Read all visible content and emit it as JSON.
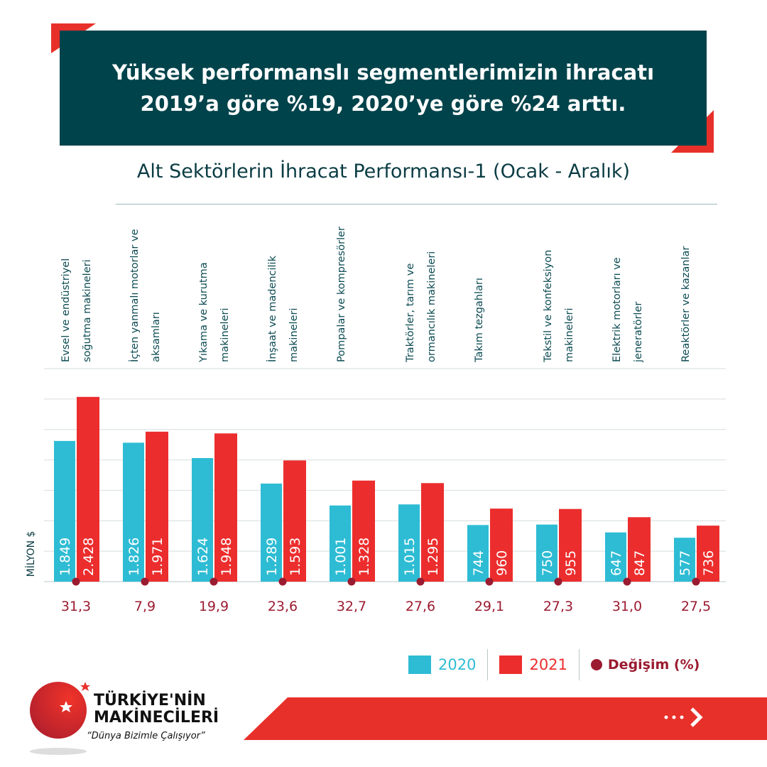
{
  "header": {
    "line1": "Yüksek performanslı segmentlerimizin ihracatı",
    "line2": "2019’a göre %19, 2020’ye göre %24 arttı."
  },
  "colors": {
    "header_bg": "#00434b",
    "series_2020": "#2ebcd4",
    "series_2021": "#ec2d2d",
    "change": "#9b1b30",
    "accent": "#e8302a"
  },
  "chart_data": {
    "type": "bar",
    "title": "Alt Sektörlerin İhracat Performansı-1 (Ocak - Aralık)",
    "ylabel": "MİLYON $",
    "ylim": [
      0,
      2800
    ],
    "grid": true,
    "legend_placement": "bottom-right",
    "categories": [
      "Evsel ve endüstriyel soğutma makineleri",
      "İçten yanmalı motorlar ve aksamları",
      "Yıkama ve kurutma makineleri",
      "İnşaat ve madencilik makineleri",
      "Pompalar ve kompresörler",
      "Traktörler, tarım ve ormancılık makineleri",
      "Takım tezgahları",
      "Tekstil ve konfeksiyon makineleri",
      "Elektrik motorları ve jeneratörler",
      "Reaktörler ve kazanlar"
    ],
    "series": [
      {
        "name": "2020",
        "values": [
          1849,
          1826,
          1624,
          1289,
          1001,
          1015,
          744,
          750,
          647,
          577
        ],
        "labels": [
          "1.849",
          "1.826",
          "1.624",
          "1.289",
          "1.001",
          "1.015",
          "744",
          "750",
          "647",
          "577"
        ]
      },
      {
        "name": "2021",
        "values": [
          2428,
          1971,
          1948,
          1593,
          1328,
          1295,
          960,
          955,
          847,
          736
        ],
        "labels": [
          "2.428",
          "1.971",
          "1.948",
          "1.593",
          "1.328",
          "1.295",
          "960",
          "955",
          "847",
          "736"
        ]
      },
      {
        "name": "Değişim (%)",
        "values": [
          31.3,
          7.9,
          19.9,
          23.6,
          32.7,
          27.6,
          29.1,
          27.3,
          31.0,
          27.5
        ],
        "labels": [
          "31,3",
          "7,9",
          "19,9",
          "23,6",
          "32,7",
          "27,6",
          "29,1",
          "27,3",
          "31,0",
          "27,5"
        ]
      }
    ]
  },
  "legend": {
    "a": "2020",
    "b": "2021",
    "c": "Değişim (%)"
  },
  "logo": {
    "line1": "TÜRKİYE'NİN",
    "line2": "MAKİNECİLERİ",
    "slogan": "“Dünya Bizimle Çalışıyor”"
  },
  "icons": {
    "next": "chevron-right-icon"
  }
}
